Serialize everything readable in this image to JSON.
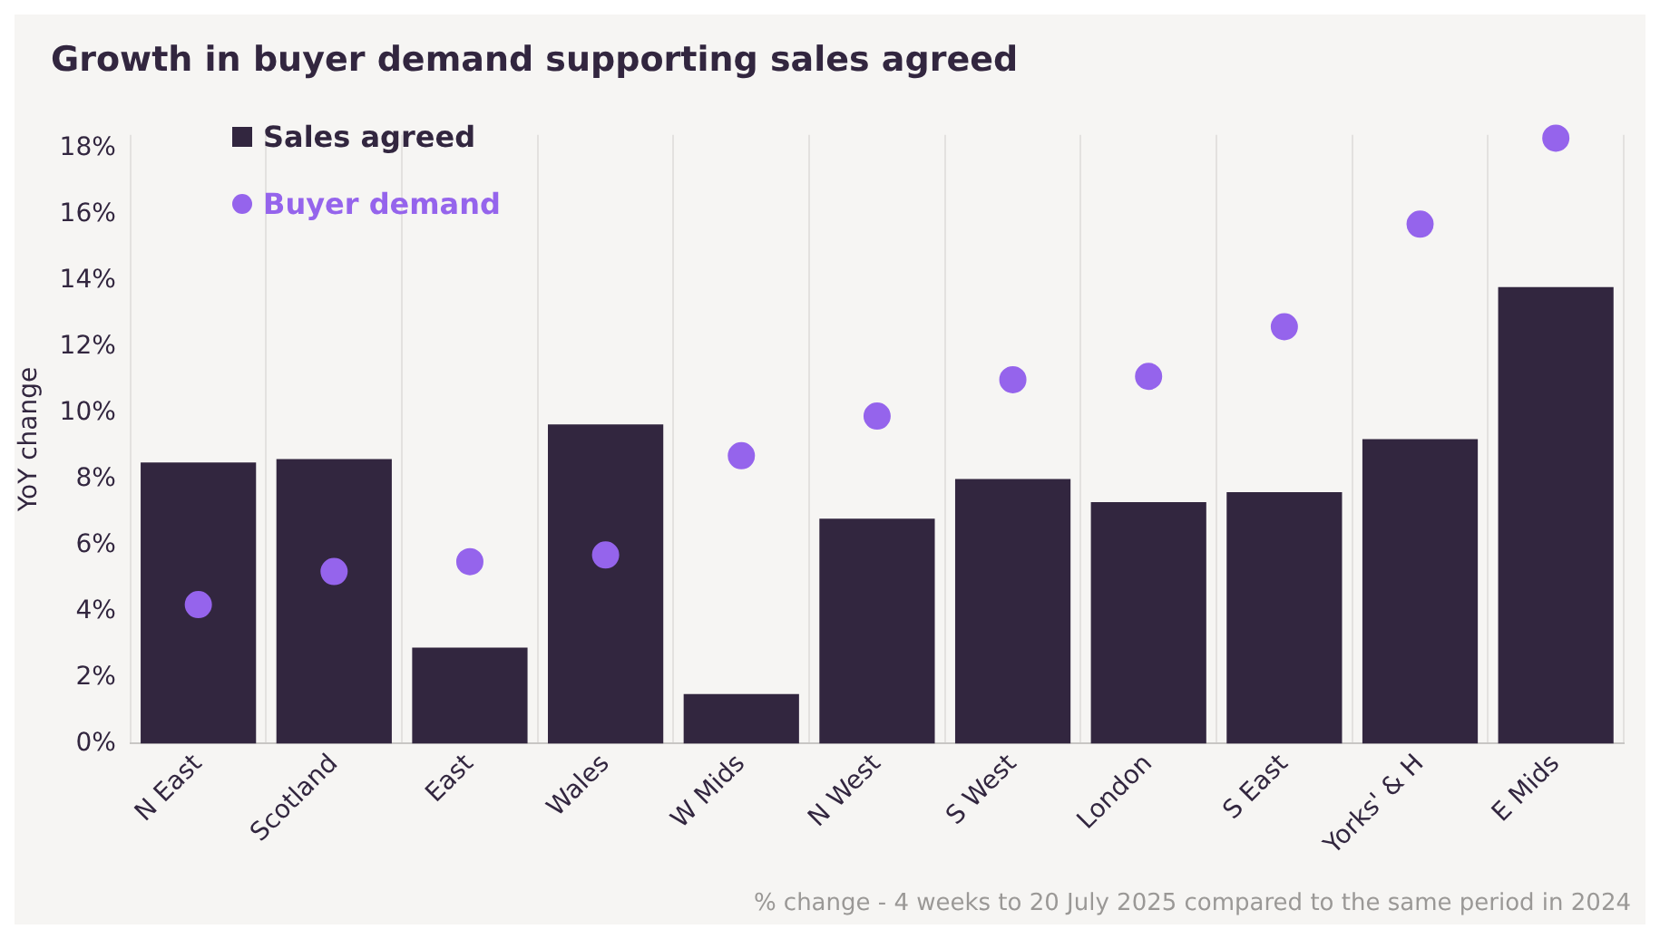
{
  "chart_data": {
    "type": "bar",
    "title": "Growth in buyer demand supporting sales agreed",
    "ylabel": "YoY change",
    "categories": [
      "N East",
      "Scotland",
      "East",
      "Wales",
      "W Mids",
      "N West",
      "S West",
      "London",
      "S East",
      "Yorks' & H",
      "E Mids"
    ],
    "series": [
      {
        "name": "Sales agreed",
        "color": "#32263f",
        "values": [
          8.5,
          8.6,
          2.9,
          9.65,
          1.5,
          6.8,
          8.0,
          7.3,
          7.6,
          9.2,
          13.8
        ]
      },
      {
        "name": "Buyer demand",
        "type": "scatter",
        "color": "#9564ec",
        "values": [
          4.2,
          5.2,
          5.5,
          5.7,
          8.7,
          9.9,
          11.0,
          11.1,
          12.6,
          15.7,
          18.3
        ]
      }
    ],
    "ylim": [
      0,
      18.4
    ],
    "yticks": [
      {
        "value": 0,
        "label": "0%"
      },
      {
        "value": 2,
        "label": "2%"
      },
      {
        "value": 4,
        "label": "4%"
      },
      {
        "value": 6,
        "label": "6%"
      },
      {
        "value": 8,
        "label": "8%"
      },
      {
        "value": 10,
        "label": "10%"
      },
      {
        "value": 12,
        "label": "12%"
      },
      {
        "value": 14,
        "label": "14%"
      },
      {
        "value": 16,
        "label": "16%"
      },
      {
        "value": 18,
        "label": "18%"
      }
    ],
    "grid": "x",
    "legend": "top left",
    "marker": "circle",
    "annotations": [
      "% change - 4 weeks to 20 July 2025 compared to the same period in 2024"
    ]
  }
}
